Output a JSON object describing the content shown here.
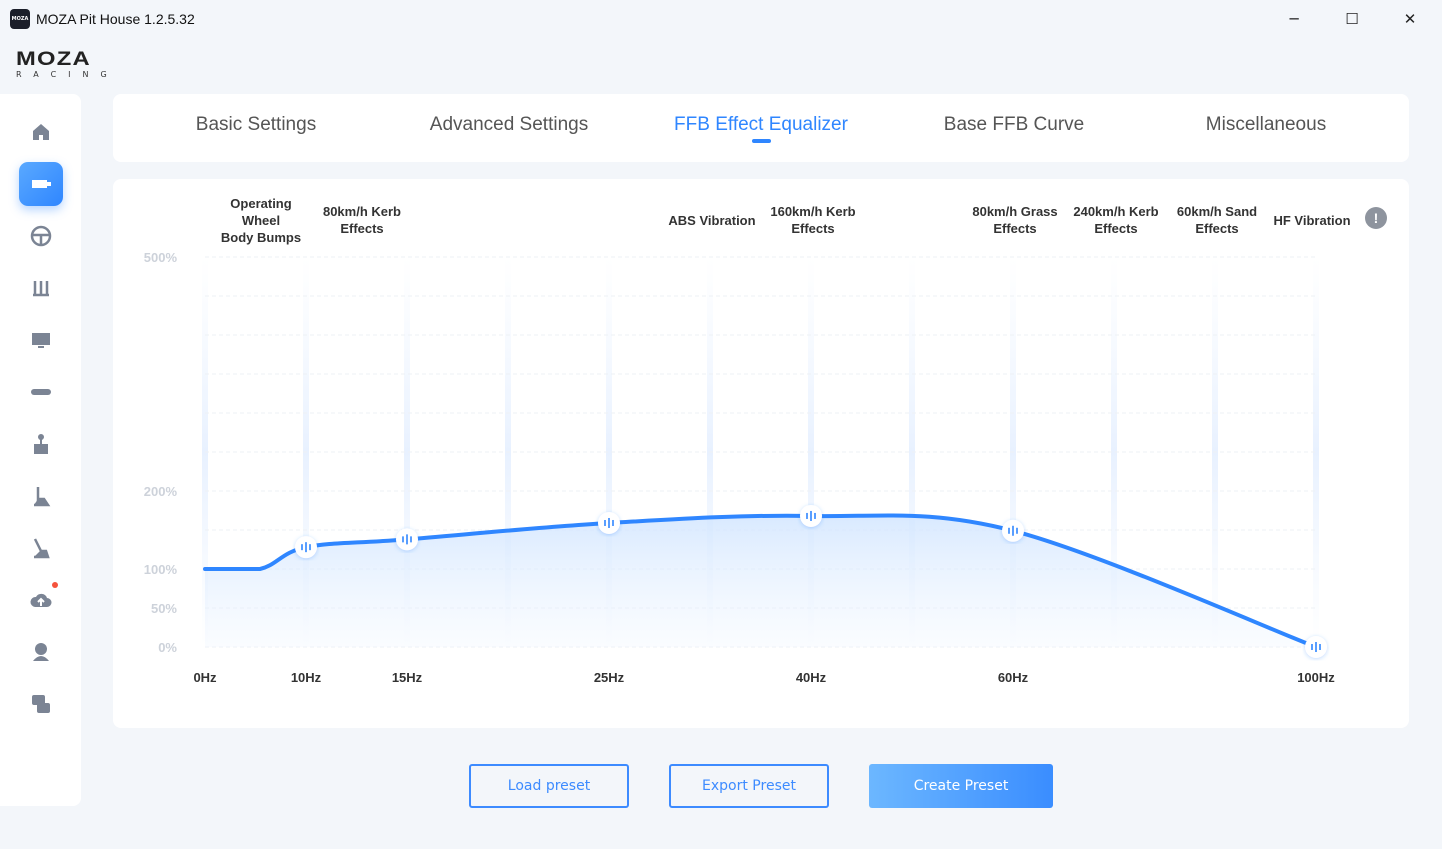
{
  "window": {
    "title": "MOZA Pit House 1.2.5.32",
    "icon_text": "MOZA",
    "minimize": "─",
    "maximize": "☐",
    "close": "✕"
  },
  "logo": {
    "text": "MOZA",
    "subtitle": "RACING"
  },
  "sidebar": {
    "items": [
      {
        "icon": "home-icon"
      },
      {
        "icon": "wheelbase-icon",
        "active": true
      },
      {
        "icon": "steering-wheel-icon"
      },
      {
        "icon": "pedals-icon"
      },
      {
        "icon": "dashboard-icon"
      },
      {
        "icon": "rpm-bar-icon"
      },
      {
        "icon": "handbrake-icon"
      },
      {
        "icon": "shifter-icon"
      },
      {
        "icon": "sequential-shifter-icon"
      },
      {
        "icon": "cloud-upload-icon",
        "badge": true
      },
      {
        "icon": "user-icon"
      },
      {
        "icon": "qa-icon"
      }
    ]
  },
  "tabs": [
    {
      "label": "Basic Settings"
    },
    {
      "label": "Advanced Settings"
    },
    {
      "label": "FFB Effect Equalizer",
      "active": true
    },
    {
      "label": "Base FFB Curve"
    },
    {
      "label": "Miscellaneous"
    }
  ],
  "chart_data": {
    "type": "area",
    "band_labels": [
      [
        "Operating",
        "Wheel",
        "Body Bumps"
      ],
      [
        "80km/h Kerb",
        "Effects"
      ],
      [
        "ABS Vibration"
      ],
      [
        "160km/h Kerb",
        "Effects"
      ],
      [
        "80km/h Grass",
        "Effects"
      ],
      [
        "240km/h Kerb",
        "Effects"
      ],
      [
        "60km/h Sand",
        "Effects"
      ],
      [
        "HF Vibration"
      ]
    ],
    "y_ticks": [
      "0%",
      "50%",
      "100%",
      "200%",
      "500%"
    ],
    "y_tick_values": [
      0,
      50,
      100,
      200,
      500
    ],
    "x_ticks": [
      "0Hz",
      "10Hz",
      "15Hz",
      "25Hz",
      "40Hz",
      "60Hz",
      "100Hz"
    ],
    "ylim": [
      0,
      500
    ],
    "x": [
      0,
      10,
      15,
      25,
      40,
      60,
      100
    ],
    "y": [
      100,
      128,
      138,
      159,
      168,
      149,
      0
    ],
    "nodes": [
      "10Hz",
      "15Hz",
      "25Hz",
      "40Hz",
      "60Hz",
      "100Hz"
    ],
    "grid": true,
    "line_color": "#2f86ff",
    "info_icon": "info-icon"
  },
  "buttons": {
    "load": "Load preset",
    "export": "Export Preset",
    "create": "Create Preset"
  },
  "colors": {
    "accent": "#2f86ff",
    "background": "#f3f6fa"
  }
}
